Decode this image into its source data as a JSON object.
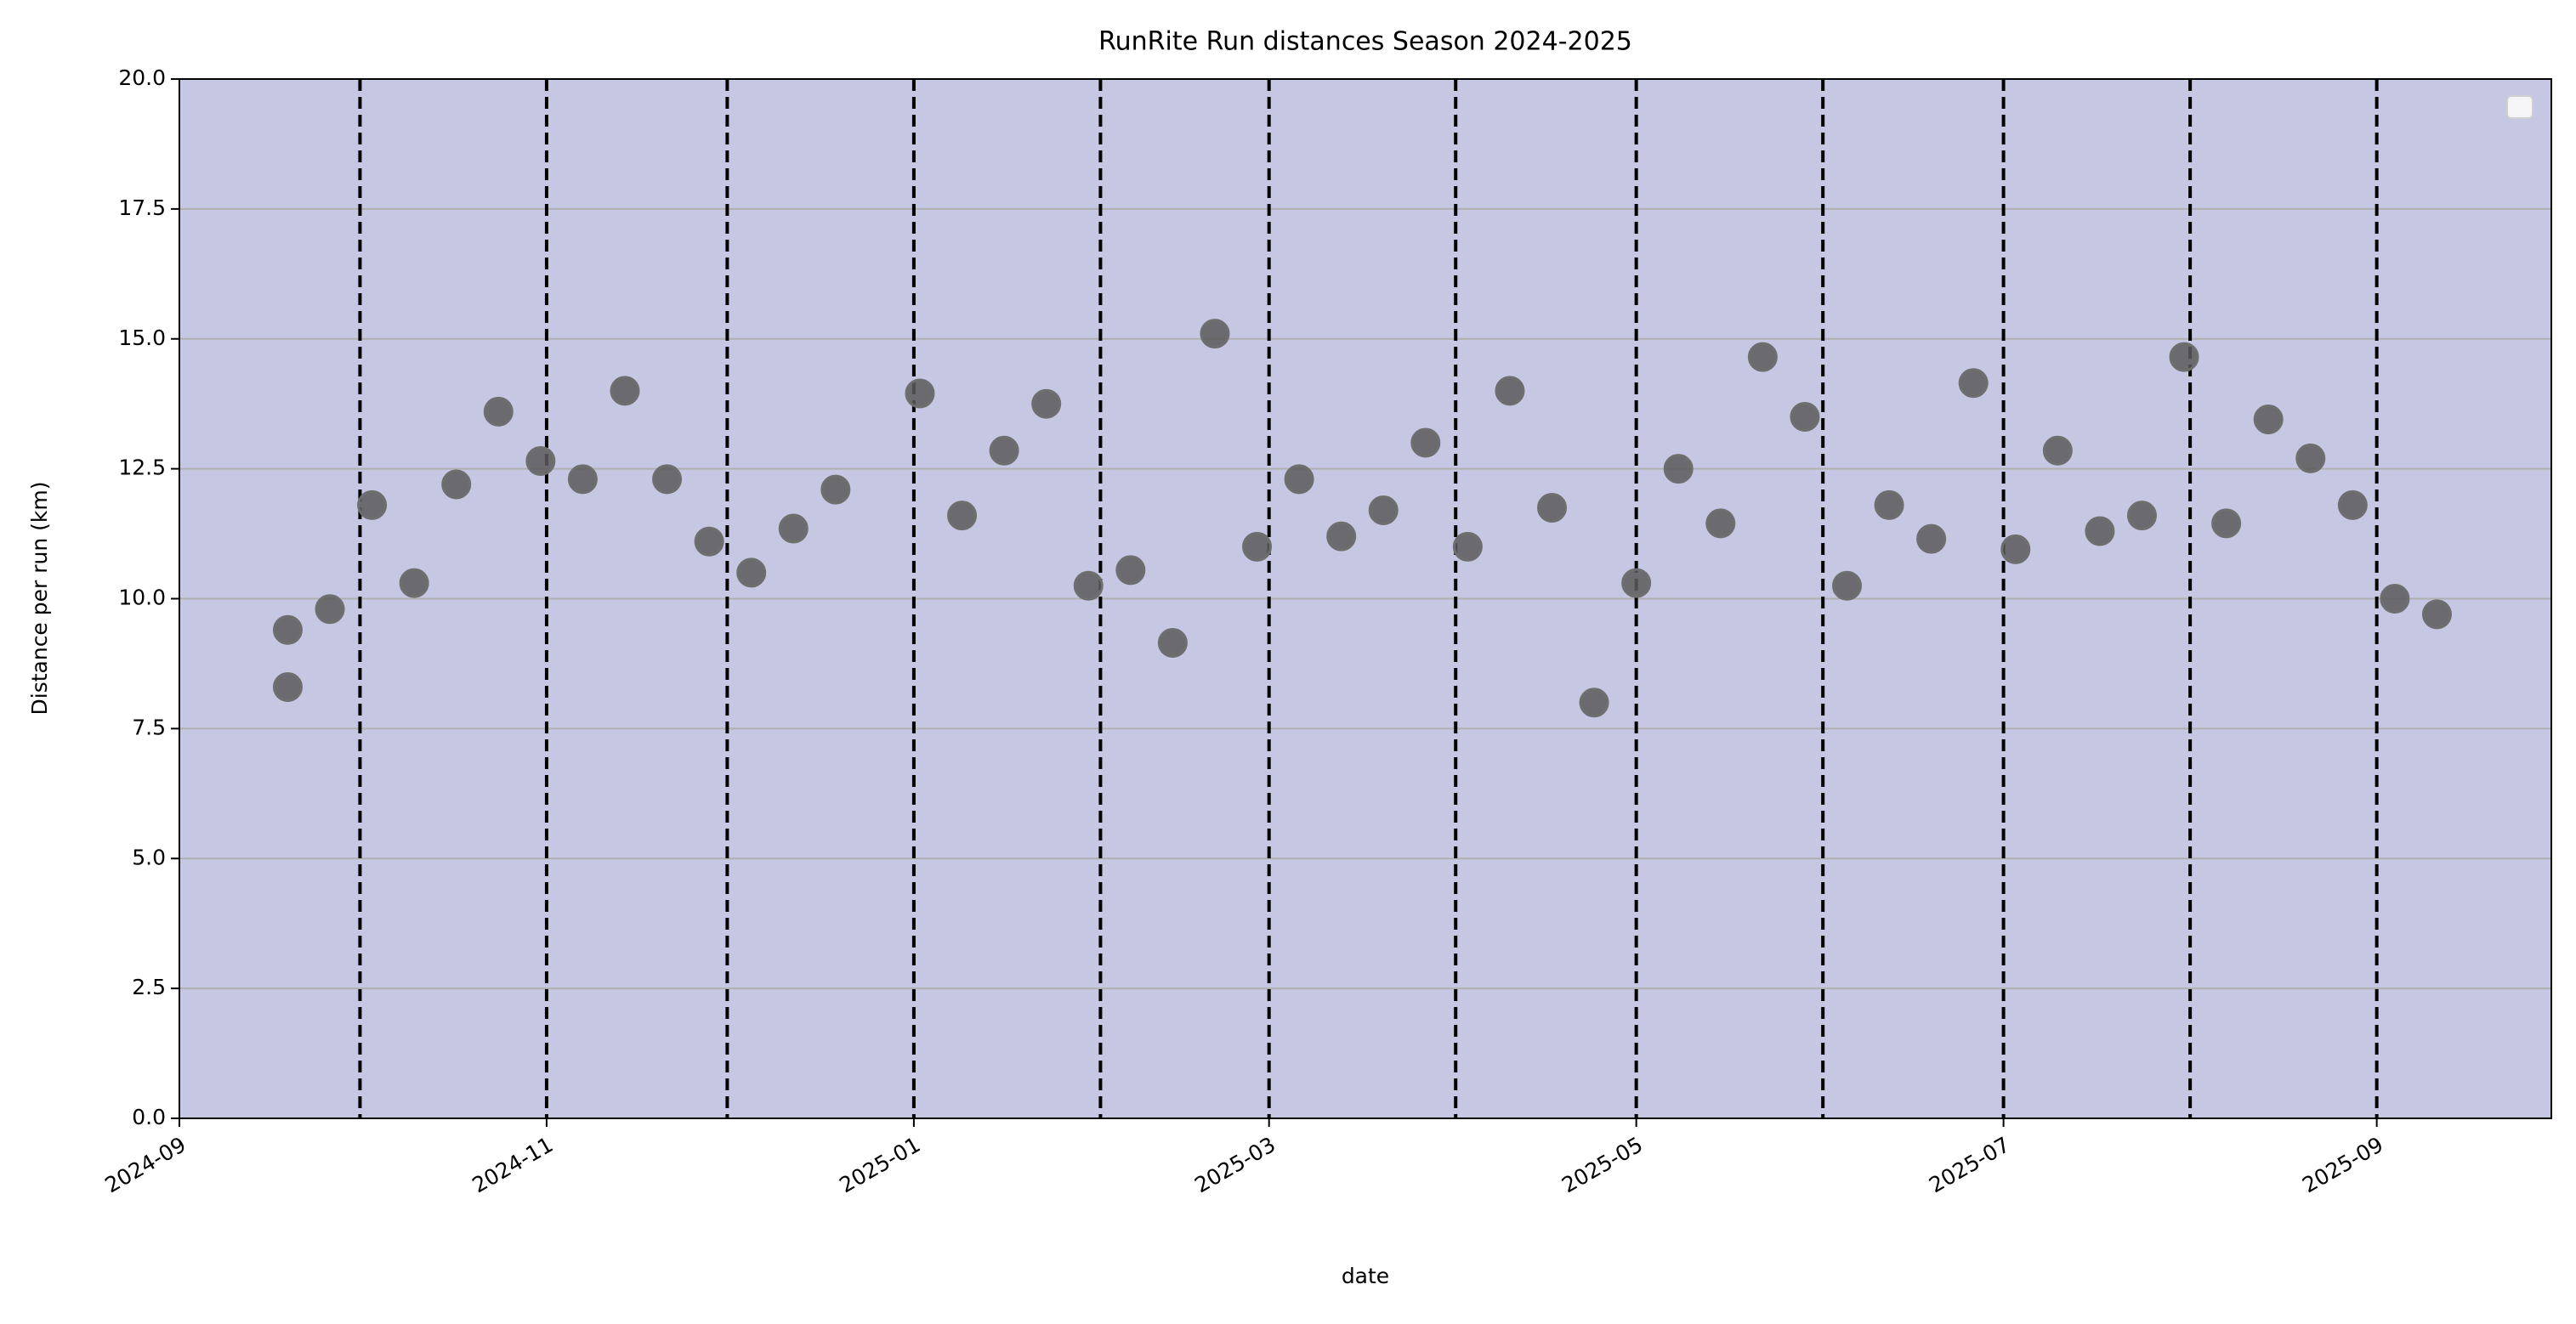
{
  "chart_data": {
    "type": "scatter",
    "title": "RunRite Run distances Season 2024-2025",
    "xlabel": "date",
    "ylabel": "Distance per run (km)",
    "x": [
      "2024-09-19",
      "2024-09-19",
      "2024-09-26",
      "2024-10-03",
      "2024-10-10",
      "2024-10-17",
      "2024-10-24",
      "2024-10-31",
      "2024-11-07",
      "2024-11-14",
      "2024-11-21",
      "2024-11-28",
      "2024-12-05",
      "2024-12-12",
      "2024-12-19",
      "2025-01-02",
      "2025-01-09",
      "2025-01-16",
      "2025-01-23",
      "2025-01-30",
      "2025-02-06",
      "2025-02-13",
      "2025-02-20",
      "2025-02-27",
      "2025-03-06",
      "2025-03-13",
      "2025-03-20",
      "2025-03-27",
      "2025-04-03",
      "2025-04-10",
      "2025-04-17",
      "2025-04-24",
      "2025-05-01",
      "2025-05-08",
      "2025-05-15",
      "2025-05-22",
      "2025-05-29",
      "2025-06-05",
      "2025-06-12",
      "2025-06-19",
      "2025-06-26",
      "2025-07-03",
      "2025-07-10",
      "2025-07-17",
      "2025-07-24",
      "2025-07-31",
      "2025-08-07",
      "2025-08-14",
      "2025-08-21",
      "2025-08-28",
      "2025-09-04",
      "2025-09-11"
    ],
    "values": [
      9.4,
      8.3,
      9.8,
      11.8,
      10.3,
      12.2,
      13.6,
      12.65,
      12.3,
      14.0,
      12.3,
      11.1,
      10.5,
      11.35,
      12.1,
      13.95,
      11.6,
      12.85,
      13.75,
      10.25,
      10.55,
      9.15,
      15.1,
      11.0,
      12.3,
      11.2,
      11.7,
      13.0,
      11.0,
      14.0,
      11.75,
      8.0,
      10.3,
      12.5,
      11.45,
      14.65,
      13.5,
      10.25,
      11.8,
      11.15,
      14.15,
      10.95,
      12.85,
      11.3,
      11.6,
      14.65,
      11.45,
      13.45,
      12.7,
      11.8,
      10.0,
      9.7
    ],
    "color": "#5a5a5a",
    "background": "#c5c7e3",
    "xlim": [
      "2024-09-01",
      "2025-09-30"
    ],
    "xticks": [
      {
        "value": "2024-09-01",
        "label": "2024-09"
      },
      {
        "value": "2024-11-01",
        "label": "2024-11"
      },
      {
        "value": "2025-01-01",
        "label": "2025-01"
      },
      {
        "value": "2025-03-01",
        "label": "2025-03"
      },
      {
        "value": "2025-05-01",
        "label": "2025-05"
      },
      {
        "value": "2025-07-01",
        "label": "2025-07"
      },
      {
        "value": "2025-09-01",
        "label": "2025-09"
      }
    ],
    "ylim": [
      0,
      20
    ],
    "yticks": [
      {
        "value": 0,
        "label": "0.0"
      },
      2.5,
      {
        "value": 5,
        "label": "5.0"
      },
      7.5,
      {
        "value": 10,
        "label": "10.0"
      },
      12.5,
      {
        "value": 15,
        "label": "15.0"
      },
      17.5,
      {
        "value": 20,
        "label": "20.0"
      }
    ],
    "vlines": [
      "2024-10-01",
      "2024-11-01",
      "2024-12-01",
      "2025-01-01",
      "2025-02-01",
      "2025-03-01",
      "2025-04-01",
      "2025-05-01",
      "2025-06-01",
      "2025-07-01",
      "2025-08-01",
      "2025-09-01"
    ],
    "grid": "y",
    "legend": "upper right"
  }
}
